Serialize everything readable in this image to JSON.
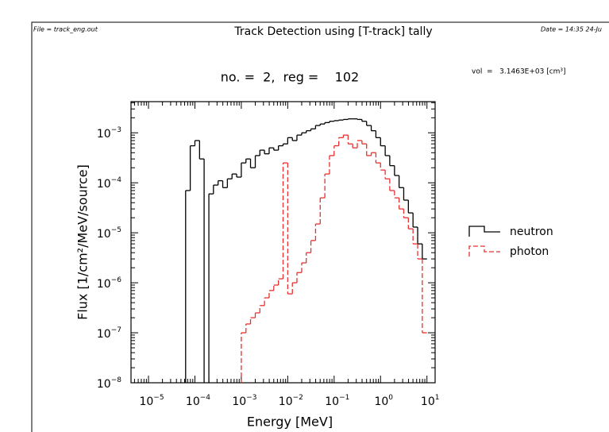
{
  "chart_data": {
    "type": "step",
    "title": "Track Detection using [T-track] tally",
    "file_note": "File = track_eng.out",
    "date_note": "Date = 14:35 24-Ju",
    "subtitle": "no. =  2,  reg =    102",
    "volume_note": "vol  =   3.1463E+03 [cm³]",
    "x_label": "Energy [MeV]",
    "y_label": "Flux [1/cm²/MeV/source]",
    "log_x": true,
    "log_y": true,
    "xlim": [
      4.2e-06,
      15
    ],
    "ylim": [
      1e-08,
      0.0042
    ],
    "xticks": [
      {
        "value": 1e-05,
        "label": "10",
        "exponent": "−5"
      },
      {
        "value": 0.0001,
        "label": "10",
        "exponent": "−4"
      },
      {
        "value": 0.001,
        "label": "10",
        "exponent": "−3"
      },
      {
        "value": 0.01,
        "label": "10",
        "exponent": "−2"
      },
      {
        "value": 0.1,
        "label": "10",
        "exponent": "−1"
      },
      {
        "value": 1,
        "label": "10",
        "exponent": "0"
      },
      {
        "value": 10,
        "label": "10",
        "exponent": "1"
      }
    ],
    "yticks": [
      {
        "value": 1e-08,
        "label": "10",
        "exponent": "−8"
      },
      {
        "value": 1e-07,
        "label": "10",
        "exponent": "−7"
      },
      {
        "value": 1e-06,
        "label": "10",
        "exponent": "−6"
      },
      {
        "value": 1e-05,
        "label": "10",
        "exponent": "−5"
      },
      {
        "value": 0.0001,
        "label": "10",
        "exponent": "−4"
      },
      {
        "value": 0.001,
        "label": "10",
        "exponent": "−3"
      }
    ],
    "series": [
      {
        "name": "neutron",
        "color": "#000000",
        "dash": false,
        "bins": [
          6.31e-05,
          7.94e-05,
          0.0001,
          0.000126,
          0.000158,
          0.0002,
          0.000251,
          0.000316,
          0.000398,
          0.000501,
          0.000631,
          0.000794,
          0.001,
          0.00126,
          0.00158,
          0.002,
          0.00251,
          0.00316,
          0.00398,
          0.00501,
          0.00631,
          0.00794,
          0.01,
          0.0126,
          0.0158,
          0.02,
          0.0251,
          0.0316,
          0.0398,
          0.0501,
          0.0631,
          0.0794,
          0.1,
          0.126,
          0.158,
          0.2,
          0.251,
          0.316,
          0.398,
          0.501,
          0.631,
          0.794,
          1,
          1.26,
          1.58,
          2,
          2.51,
          3.16,
          3.98,
          5.01,
          6.31,
          7.94,
          10
        ],
        "values": [
          7e-05,
          0.00055,
          0.0007,
          0.0003,
          null,
          6e-05,
          9e-05,
          0.00011,
          8e-05,
          0.00012,
          0.00015,
          0.00013,
          0.00025,
          0.0003,
          0.0002,
          0.00035,
          0.00045,
          0.00038,
          0.0005,
          0.00045,
          0.00055,
          0.0006,
          0.0008,
          0.0007,
          0.0009,
          0.001,
          0.0011,
          0.0012,
          0.0014,
          0.0015,
          0.0016,
          0.0017,
          0.00175,
          0.0018,
          0.00185,
          0.0019,
          0.0019,
          0.00185,
          0.0017,
          0.0014,
          0.0011,
          0.0008,
          0.00055,
          0.00035,
          0.00022,
          0.00014,
          8e-05,
          4.5e-05,
          2.5e-05,
          1.3e-05,
          6e-06,
          3e-06
        ]
      },
      {
        "name": "photon",
        "color": "#e8302f",
        "dash": true,
        "bins": [
          0.001,
          0.00126,
          0.00158,
          0.002,
          0.00251,
          0.00316,
          0.00398,
          0.00501,
          0.00631,
          0.00794,
          0.01,
          0.0126,
          0.0158,
          0.02,
          0.0251,
          0.0316,
          0.0398,
          0.0501,
          0.0631,
          0.0794,
          0.1,
          0.126,
          0.158,
          0.2,
          0.251,
          0.316,
          0.398,
          0.501,
          0.631,
          0.794,
          1,
          1.26,
          1.58,
          2,
          2.51,
          3.16,
          3.98,
          5.01,
          6.31,
          7.94,
          10
        ],
        "values": [
          1e-07,
          1.5e-07,
          2e-07,
          2.5e-07,
          3.5e-07,
          5e-07,
          7e-07,
          9e-07,
          1.2e-06,
          0.00025,
          6e-07,
          1e-06,
          1.6e-06,
          2.5e-06,
          4e-06,
          7e-06,
          1.5e-05,
          5e-05,
          0.00015,
          0.00035,
          0.00055,
          0.0008,
          0.0009,
          0.0006,
          0.0005,
          0.0007,
          0.0006,
          0.00035,
          0.0004,
          0.00025,
          0.00018,
          0.00012,
          7e-05,
          5e-05,
          3e-05,
          2e-05,
          1.2e-05,
          6e-06,
          3e-06,
          1e-07
        ]
      }
    ]
  }
}
